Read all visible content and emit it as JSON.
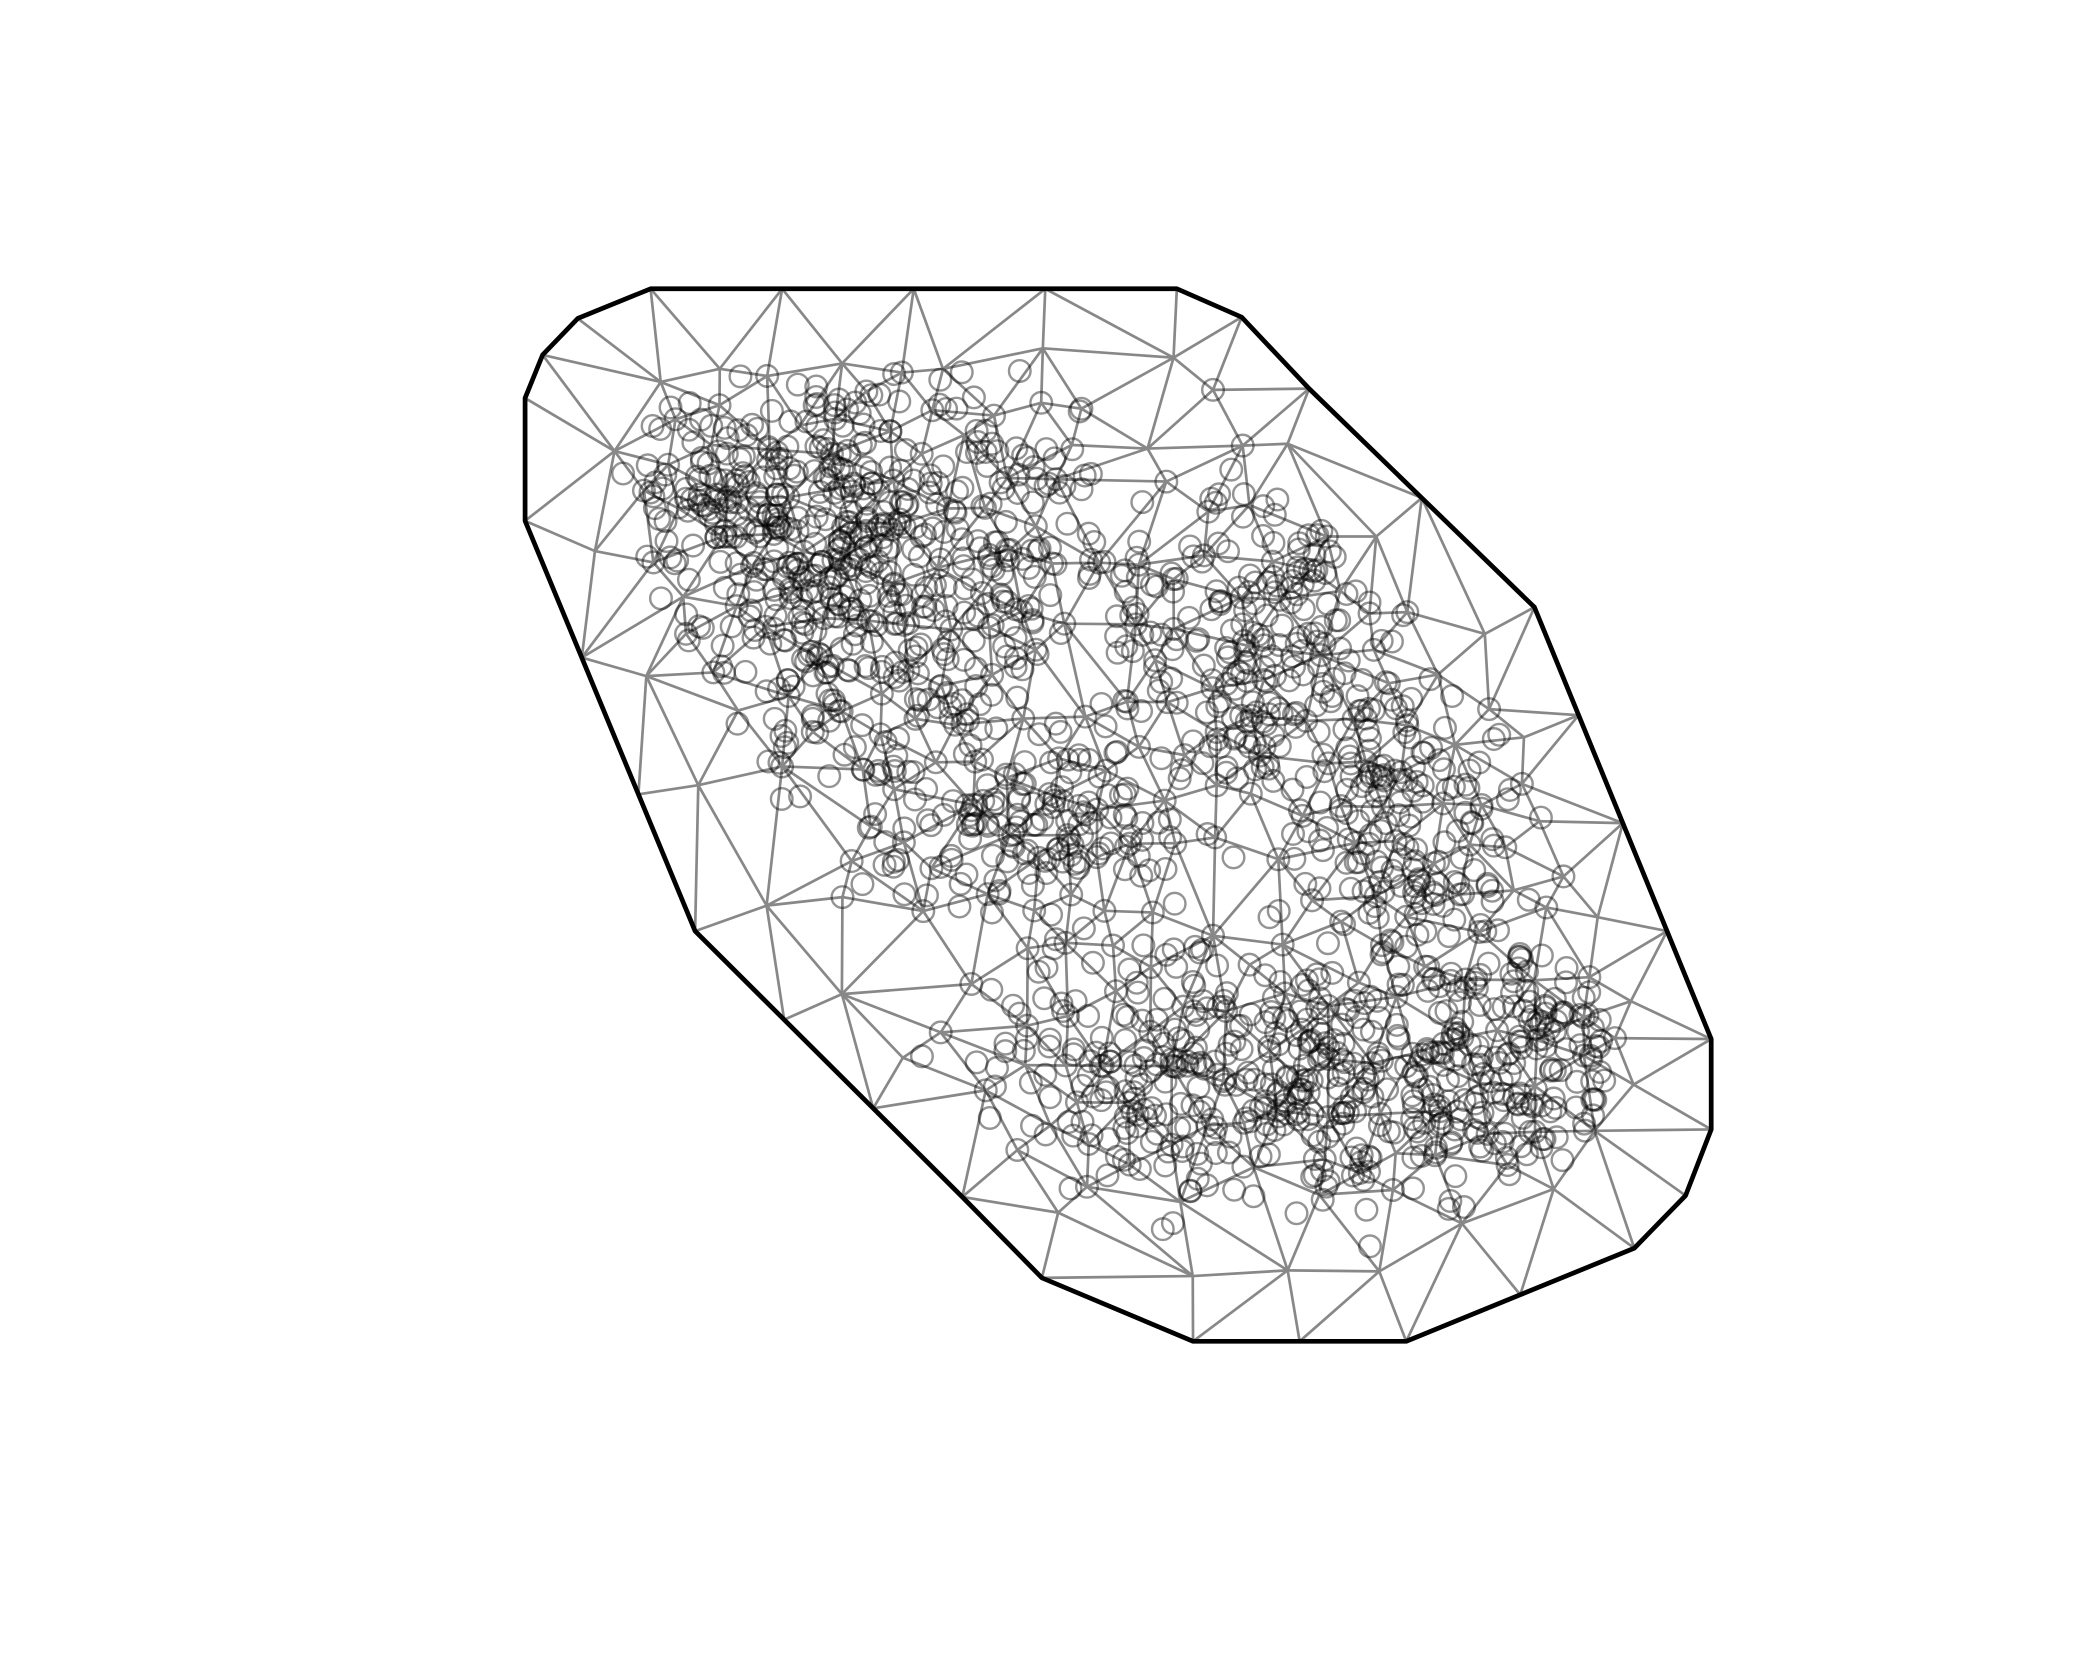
{
  "chart_data": {
    "type": "mesh"
  }
}
